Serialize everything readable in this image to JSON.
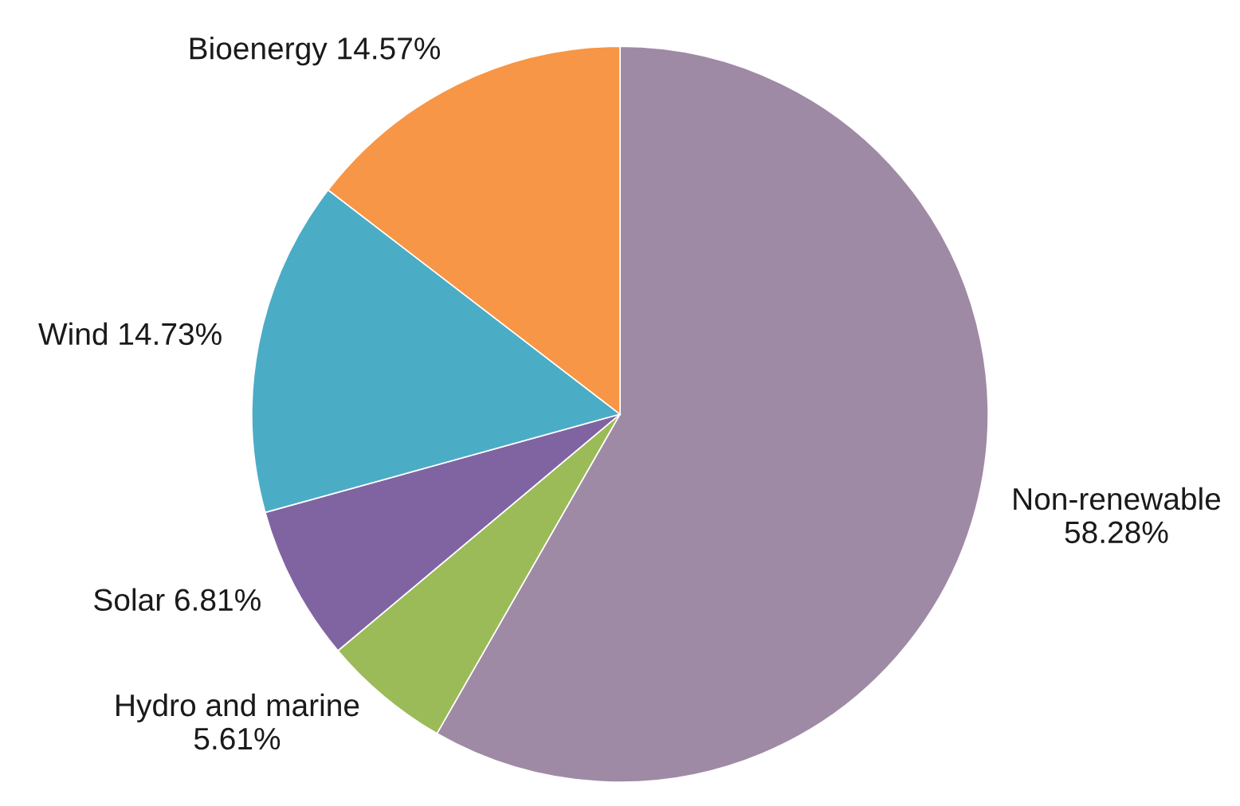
{
  "chart_data": {
    "type": "pie",
    "categories": [
      "Non-renewable",
      "Hydro and marine",
      "Solar",
      "Wind",
      "Bioenergy"
    ],
    "values": [
      58.28,
      5.61,
      6.81,
      14.73,
      14.57
    ],
    "value_labels": [
      "58.28%",
      "5.61%",
      "6.81%",
      "14.73%",
      "14.57%"
    ],
    "colors": [
      "#9f8aa5",
      "#9bbb59",
      "#8064a2",
      "#4bacc6",
      "#f79646"
    ]
  }
}
